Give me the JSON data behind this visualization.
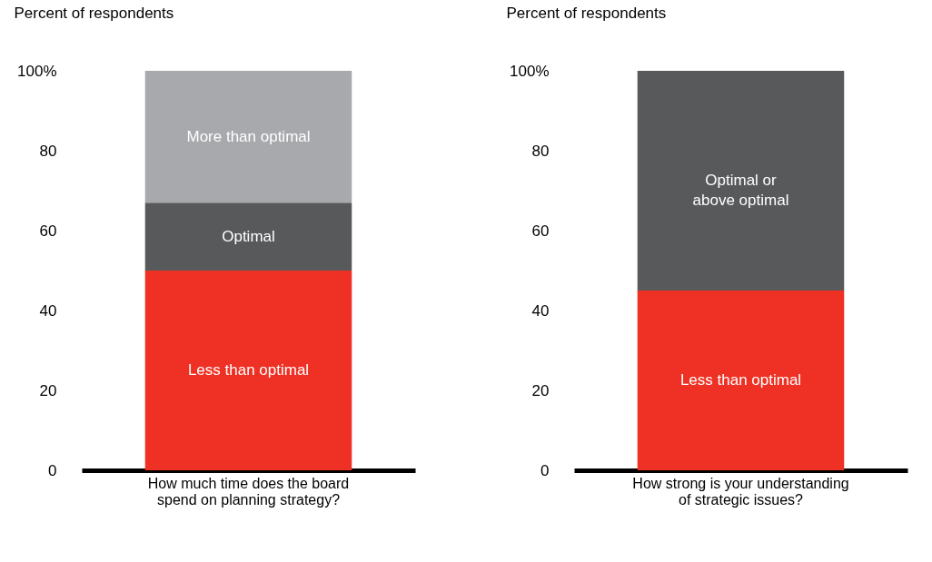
{
  "chart_data": [
    {
      "type": "bar",
      "stacked": true,
      "ylabel": "Percent of respondents",
      "categories": [
        "How much time does the board spend on planning strategy?"
      ],
      "series": [
        {
          "name": "Less than optimal",
          "color": "#ee3124",
          "values": [
            50
          ]
        },
        {
          "name": "Optimal",
          "color": "#58595b",
          "values": [
            17
          ]
        },
        {
          "name": "More than optimal",
          "color": "#a7a9ac",
          "values": [
            33
          ]
        }
      ],
      "ylim": [
        0,
        100
      ],
      "yticks": [
        0,
        20,
        40,
        60,
        80,
        {
          "value": 100,
          "label": "100%"
        }
      ],
      "grid": false,
      "legend": false
    },
    {
      "type": "bar",
      "stacked": true,
      "ylabel": "Percent of respondents",
      "categories": [
        "How strong is your understanding of strategic issues?"
      ],
      "series": [
        {
          "name": "Less than optimal",
          "color": "#ee3124",
          "values": [
            45
          ]
        },
        {
          "name": "Optimal or above optimal",
          "color": "#58595b",
          "values": [
            55
          ]
        }
      ],
      "ylim": [
        0,
        100
      ],
      "yticks": [
        0,
        20,
        40,
        60,
        80,
        {
          "value": 100,
          "label": "100%"
        }
      ],
      "grid": false,
      "legend": false
    }
  ]
}
